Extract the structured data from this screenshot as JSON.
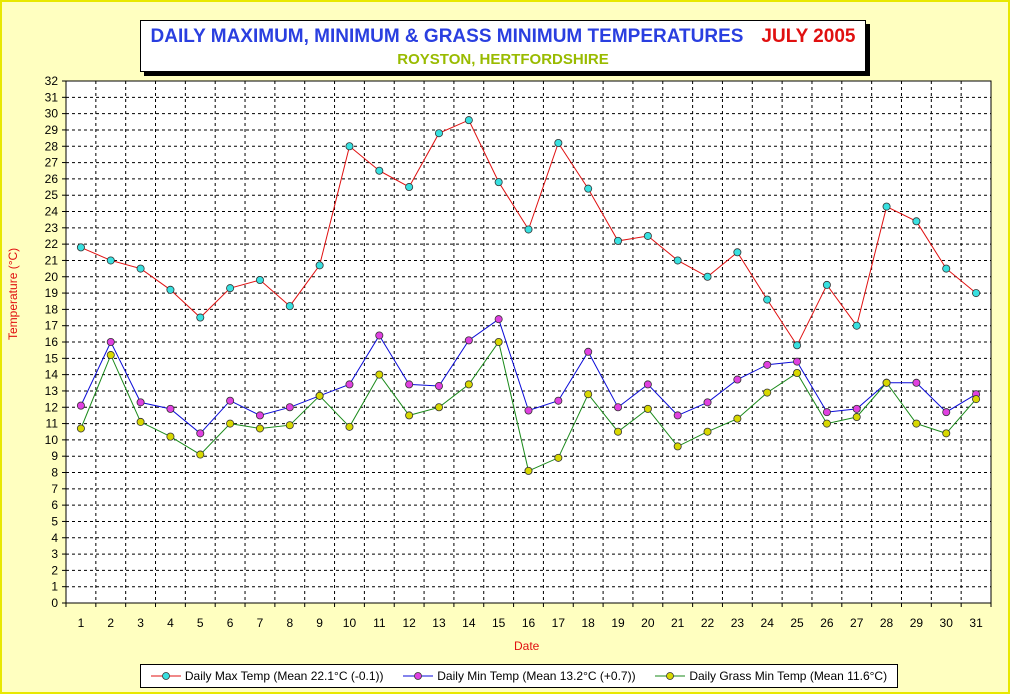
{
  "title": {
    "main": "DAILY MAXIMUM, MINIMUM & GRASS MINIMUM TEMPERATURES",
    "month": "JULY 2005",
    "subtitle": "ROYSTON, HERTFORDSHIRE"
  },
  "colors": {
    "background": "#ffffc0",
    "max_line": "#e01010",
    "min_line": "#0a0ad8",
    "grass_line": "#1a8a1a",
    "max_marker": "#38e0e0",
    "min_marker": "#e040e0",
    "grass_marker": "#d8d800"
  },
  "chart_data": {
    "type": "line",
    "xlabel": "Date",
    "ylabel": "Temperature (°C)",
    "ylim": [
      0,
      32
    ],
    "grid": true,
    "legend_position": "bottom",
    "categories": [
      "1",
      "2",
      "3",
      "4",
      "5",
      "6",
      "7",
      "8",
      "9",
      "10",
      "11",
      "12",
      "13",
      "14",
      "15",
      "16",
      "17",
      "18",
      "19",
      "20",
      "21",
      "22",
      "23",
      "24",
      "25",
      "26",
      "27",
      "28",
      "29",
      "30",
      "31"
    ],
    "series": [
      {
        "name": "Daily Max Temp (Mean 22.1°C (-0.1))",
        "values": [
          21.8,
          21.0,
          20.5,
          19.2,
          17.5,
          19.3,
          19.8,
          18.2,
          20.7,
          28.0,
          26.5,
          25.5,
          28.8,
          29.6,
          25.8,
          22.9,
          28.2,
          25.4,
          22.2,
          22.5,
          21.0,
          20.0,
          21.5,
          18.6,
          15.8,
          19.5,
          17.0,
          24.3,
          23.4,
          20.5,
          19.0
        ]
      },
      {
        "name": "Daily Min Temp (Mean 13.2°C (+0.7))",
        "values": [
          12.1,
          16.0,
          12.3,
          11.9,
          10.4,
          12.4,
          11.5,
          12.0,
          12.7,
          13.4,
          16.4,
          13.4,
          13.3,
          16.1,
          17.4,
          11.8,
          12.4,
          15.4,
          12.0,
          13.4,
          11.5,
          12.3,
          13.7,
          14.6,
          14.8,
          11.7,
          11.9,
          13.5,
          13.5,
          11.7,
          12.8
        ]
      },
      {
        "name": "Daily Grass Min Temp (Mean 11.6°C)",
        "values": [
          10.7,
          15.2,
          11.1,
          10.2,
          9.1,
          11.0,
          10.7,
          10.9,
          12.7,
          10.8,
          14.0,
          11.5,
          12.0,
          13.4,
          16.0,
          8.1,
          8.9,
          12.8,
          10.5,
          11.9,
          9.6,
          10.5,
          11.3,
          12.9,
          14.1,
          11.0,
          11.4,
          13.5,
          11.0,
          10.4,
          12.5
        ]
      }
    ]
  }
}
